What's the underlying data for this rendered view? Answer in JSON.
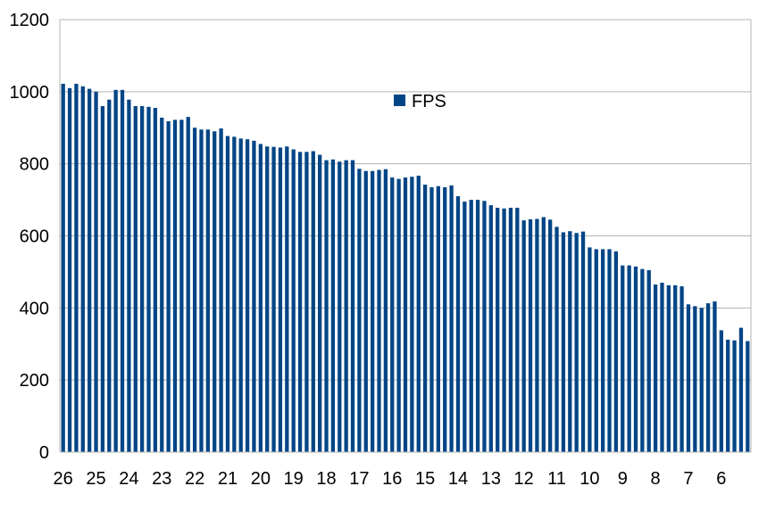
{
  "chart_data": {
    "type": "bar",
    "title": "",
    "xlabel": "",
    "ylabel": "",
    "ylim": [
      0,
      1200
    ],
    "yticks": [
      0,
      200,
      400,
      600,
      800,
      1000,
      1200
    ],
    "x_tick_labels": [
      "26",
      "25",
      "24",
      "23",
      "22",
      "21",
      "20",
      "19",
      "18",
      "17",
      "16",
      "15",
      "14",
      "13",
      "12",
      "11",
      "10",
      "9",
      "8",
      "7",
      "6"
    ],
    "grid": true,
    "legend_position": "top-center",
    "series": [
      {
        "name": "FPS",
        "color": "#004586",
        "values": [
          1022,
          1010,
          1022,
          1015,
          1008,
          1000,
          960,
          978,
          1005,
          1005,
          978,
          960,
          960,
          958,
          955,
          928,
          918,
          922,
          922,
          930,
          900,
          895,
          895,
          890,
          898,
          877,
          875,
          870,
          868,
          864,
          855,
          848,
          847,
          845,
          848,
          840,
          833,
          833,
          835,
          825,
          810,
          812,
          806,
          810,
          810,
          786,
          780,
          780,
          783,
          785,
          762,
          758,
          762,
          764,
          767,
          742,
          735,
          738,
          735,
          740,
          710,
          695,
          700,
          700,
          697,
          685,
          678,
          676,
          678,
          678,
          643,
          646,
          647,
          652,
          645,
          625,
          610,
          613,
          608,
          612,
          568,
          563,
          563,
          563,
          557,
          518,
          518,
          515,
          508,
          505,
          465,
          470,
          463,
          463,
          460,
          410,
          405,
          400,
          413,
          418,
          338,
          312,
          310,
          345,
          308
        ]
      }
    ]
  }
}
